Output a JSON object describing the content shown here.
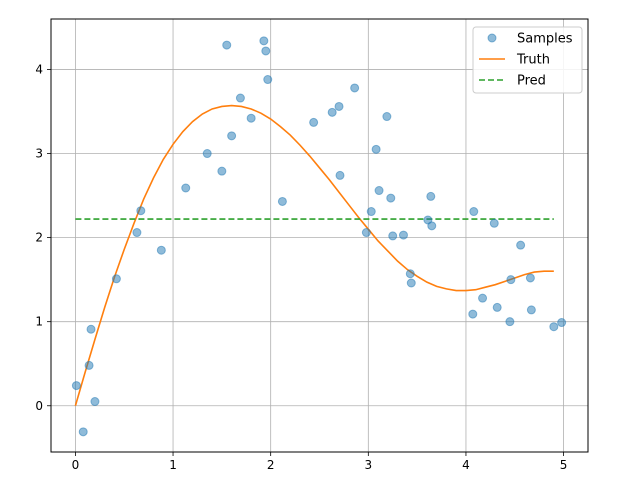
{
  "chart_data": {
    "type": "scatter+line",
    "title": "",
    "xlabel": "",
    "ylabel": "",
    "xlim": [
      -0.25,
      5.25
    ],
    "ylim": [
      -0.55,
      4.6
    ],
    "xticks": [
      0,
      1,
      2,
      3,
      4,
      5
    ],
    "yticks": [
      0,
      1,
      2,
      3,
      4
    ],
    "grid": true,
    "legend_position": "top-right",
    "colors": {
      "samples": "#1f77b4",
      "truth": "#ff7f0e",
      "pred": "#2ca02c",
      "grid": "#b0b0b0"
    },
    "legend": [
      {
        "key": "samples",
        "label": "Samples",
        "style": "marker"
      },
      {
        "key": "truth",
        "label": "Truth",
        "style": "solid"
      },
      {
        "key": "pred",
        "label": "Pred",
        "style": "dashed"
      }
    ],
    "samples": [
      [
        0.01,
        0.24
      ],
      [
        0.08,
        -0.31
      ],
      [
        0.14,
        0.48
      ],
      [
        0.16,
        0.91
      ],
      [
        0.2,
        0.05
      ],
      [
        0.42,
        1.51
      ],
      [
        0.63,
        2.06
      ],
      [
        0.67,
        2.32
      ],
      [
        0.88,
        1.85
      ],
      [
        1.13,
        2.59
      ],
      [
        1.35,
        3.0
      ],
      [
        1.5,
        2.79
      ],
      [
        1.55,
        4.29
      ],
      [
        1.6,
        3.21
      ],
      [
        1.69,
        3.66
      ],
      [
        1.8,
        3.42
      ],
      [
        1.93,
        4.34
      ],
      [
        1.95,
        4.22
      ],
      [
        1.97,
        3.88
      ],
      [
        2.12,
        2.43
      ],
      [
        2.44,
        3.37
      ],
      [
        2.63,
        3.49
      ],
      [
        2.7,
        3.56
      ],
      [
        2.71,
        2.74
      ],
      [
        2.86,
        3.78
      ],
      [
        2.98,
        2.06
      ],
      [
        3.03,
        2.31
      ],
      [
        3.08,
        3.05
      ],
      [
        3.11,
        2.56
      ],
      [
        3.19,
        3.44
      ],
      [
        3.23,
        2.47
      ],
      [
        3.25,
        2.02
      ],
      [
        3.36,
        2.03
      ],
      [
        3.43,
        1.57
      ],
      [
        3.44,
        1.46
      ],
      [
        3.61,
        2.21
      ],
      [
        3.64,
        2.49
      ],
      [
        3.65,
        2.14
      ],
      [
        4.07,
        1.09
      ],
      [
        4.08,
        2.31
      ],
      [
        4.17,
        1.28
      ],
      [
        4.29,
        2.17
      ],
      [
        4.32,
        1.17
      ],
      [
        4.45,
        1.0
      ],
      [
        4.46,
        1.5
      ],
      [
        4.56,
        1.91
      ],
      [
        4.66,
        1.52
      ],
      [
        4.67,
        1.14
      ],
      [
        4.9,
        0.94
      ],
      [
        4.98,
        0.99
      ]
    ],
    "truth": {
      "x": [
        0.0,
        0.1,
        0.2,
        0.3,
        0.4,
        0.5,
        0.6,
        0.7,
        0.8,
        0.9,
        1.0,
        1.1,
        1.2,
        1.3,
        1.4,
        1.5,
        1.6,
        1.7,
        1.8,
        1.9,
        2.0,
        2.1,
        2.2,
        2.3,
        2.4,
        2.5,
        2.6,
        2.7,
        2.8,
        2.9,
        3.0,
        3.1,
        3.2,
        3.3,
        3.4,
        3.5,
        3.6,
        3.7,
        3.8,
        3.9,
        4.0,
        4.1,
        4.2,
        4.3,
        4.4,
        4.5,
        4.6,
        4.7,
        4.8,
        4.9
      ],
      "y": [
        0.0,
        0.4,
        0.79,
        1.17,
        1.53,
        1.86,
        2.17,
        2.46,
        2.71,
        2.93,
        3.11,
        3.26,
        3.38,
        3.47,
        3.53,
        3.56,
        3.57,
        3.56,
        3.53,
        3.48,
        3.41,
        3.32,
        3.22,
        3.1,
        2.97,
        2.83,
        2.69,
        2.54,
        2.39,
        2.24,
        2.1,
        1.96,
        1.84,
        1.72,
        1.62,
        1.54,
        1.47,
        1.42,
        1.39,
        1.37,
        1.37,
        1.38,
        1.41,
        1.44,
        1.48,
        1.52,
        1.56,
        1.59,
        1.6,
        1.6
      ]
    },
    "pred": {
      "x": [
        0.0,
        4.9
      ],
      "y": [
        2.22,
        2.22
      ]
    }
  }
}
